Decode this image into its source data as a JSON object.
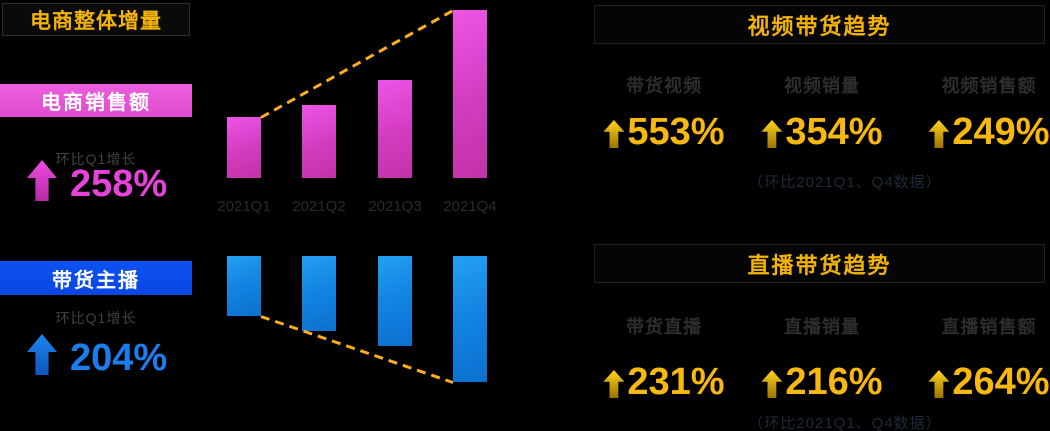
{
  "title": {
    "label": "电商整体增量"
  },
  "left": {
    "sales": {
      "box_label": "电商销售额",
      "sub": "环比Q1增长",
      "value": "258%",
      "arrow_icon": "up-arrow-icon",
      "color": "#e743d8"
    },
    "anchor": {
      "box_label": "带货主播",
      "sub": "环比Q1增长",
      "value": "204%",
      "arrow_icon": "up-arrow-icon",
      "color": "#1a7ef0"
    }
  },
  "sections": {
    "video": {
      "header": "视频带货趋势",
      "stats": [
        {
          "label": "带货视频",
          "value": "553%",
          "arrow_icon": "up-arrow-icon"
        },
        {
          "label": "视频销量",
          "value": "354%",
          "arrow_icon": "up-arrow-icon"
        },
        {
          "label": "视频销售额",
          "value": "249%",
          "arrow_icon": "up-arrow-icon"
        }
      ],
      "note": "（环比2021Q1、Q4数据）"
    },
    "live": {
      "header": "直播带货趋势",
      "stats": [
        {
          "label": "带货直播",
          "value": "231%",
          "arrow_icon": "up-arrow-icon"
        },
        {
          "label": "直播销量",
          "value": "216%",
          "arrow_icon": "up-arrow-icon"
        },
        {
          "label": "直播销售额",
          "value": "264%",
          "arrow_icon": "up-arrow-icon"
        }
      ],
      "note": "（环比2021Q1、Q4数据）"
    }
  },
  "chart_data": [
    {
      "type": "bar",
      "title": "电商销售额 环比Q1增长 258%",
      "categories": [
        "2021Q1",
        "2021Q2",
        "2021Q3",
        "2021Q4"
      ],
      "categories_shown": true,
      "values": [
        61,
        73,
        98,
        168
      ],
      "value_basis": "relative bar heights in px; no numeric axis shown in image",
      "orientation": "upright, common baseline at bottom",
      "bar_gradient": [
        "#ee54e6",
        "#c232a8"
      ],
      "trendline": {
        "style": "dashed",
        "color": "#fbaf1d",
        "path": "top of Q1 bar ascending to top of Q4 bar"
      },
      "xlabel": "",
      "ylabel": "",
      "grid": false,
      "legend": false
    },
    {
      "type": "bar",
      "title": "带货主播 环比Q1增长 204%",
      "categories": [
        "2021Q1",
        "2021Q2",
        "2021Q3",
        "2021Q4"
      ],
      "categories_shown": false,
      "values": [
        60,
        75,
        90,
        126
      ],
      "value_basis": "relative bar lengths in px; no numeric axis shown in image",
      "orientation": "inverted, bars hang from common top edge",
      "bar_gradient": [
        "#24a0f2",
        "#0c70d0"
      ],
      "trendline": {
        "style": "dashed",
        "color": "#fbaf1d",
        "path": "bottom of Q1 bar descending to bottom of Q4 bar"
      },
      "xlabel": "",
      "ylabel": "",
      "grid": false,
      "legend": false
    }
  ],
  "colors": {
    "background": "#000000",
    "gold_text": "#f9b80e",
    "yellow_header": "#f2b306",
    "pink_box": "#e557d6",
    "pink_value": "#e743d8",
    "blue_box": "#0c4dec",
    "blue_value": "#1a7ef0",
    "trendline": "#fbaf1d",
    "dim_sub_label": "#414141",
    "stat_label": "#2d2d2d",
    "axis_label": "#272a31",
    "note_text": "#1f2a3a",
    "box_border": "#2e2e2e",
    "box_bg": "#0a0a0a",
    "white": "#ffffff"
  }
}
